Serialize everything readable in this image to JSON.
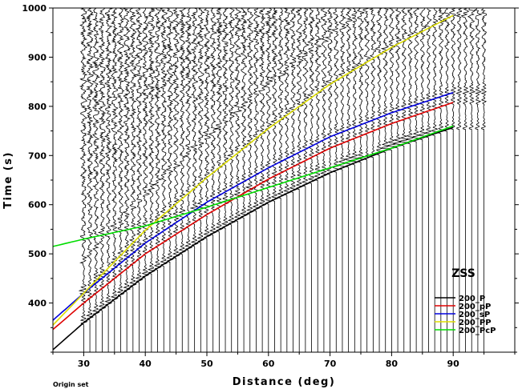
{
  "chart_data": {
    "type": "line",
    "title": "",
    "xlabel": "Distance (deg)",
    "ylabel": "Time (s)",
    "xlim": [
      25,
      100
    ],
    "ylim": [
      300,
      1000
    ],
    "x_ticks": [
      30,
      40,
      50,
      60,
      70,
      80,
      90
    ],
    "y_ticks": [
      400,
      500,
      600,
      700,
      800,
      900,
      1000
    ],
    "grid": false,
    "legend_title": "ZSS",
    "legend_position": "lower-right",
    "footnote": "Origin set",
    "traces": {
      "distances_deg": [
        30,
        31,
        32,
        33,
        34,
        35,
        36,
        37,
        38,
        39,
        40,
        41,
        42,
        43,
        44,
        45,
        46,
        47,
        48,
        49,
        50,
        51,
        52,
        53,
        54,
        55,
        56,
        57,
        58,
        59,
        60,
        61,
        62,
        63,
        64,
        65,
        66,
        67,
        68,
        69,
        70,
        71,
        72,
        73,
        74,
        75,
        76,
        77,
        78,
        79,
        80,
        81,
        82,
        83,
        84,
        85,
        86,
        87,
        88,
        89,
        90,
        91,
        92,
        93,
        94,
        95
      ],
      "end_time_s": 1000,
      "color": "#000000"
    },
    "series": [
      {
        "name": "200_P",
        "color": "#000000",
        "x": [
          25,
          30,
          40,
          50,
          60,
          70,
          80,
          90
        ],
        "y": [
          305,
          360,
          455,
          535,
          605,
          665,
          715,
          757
        ]
      },
      {
        "name": "200_pP",
        "color": "#dd0000",
        "x": [
          25,
          30,
          40,
          50,
          60,
          70,
          80,
          90
        ],
        "y": [
          346,
          400,
          500,
          580,
          652,
          715,
          765,
          808
        ]
      },
      {
        "name": "200_sP",
        "color": "#0000dd",
        "x": [
          25,
          30,
          40,
          50,
          60,
          70,
          80,
          90
        ],
        "y": [
          365,
          420,
          522,
          605,
          675,
          738,
          787,
          828
        ]
      },
      {
        "name": "200_PP",
        "color": "#dddd00",
        "x": [
          25,
          30,
          40,
          50,
          60,
          70,
          80,
          90
        ],
        "y": [
          355,
          420,
          548,
          655,
          755,
          845,
          920,
          985
        ]
      },
      {
        "name": "200_PcP",
        "color": "#00dd00",
        "x": [
          25,
          30,
          40,
          50,
          60,
          70,
          80,
          90
        ],
        "y": [
          515,
          530,
          557,
          595,
          635,
          675,
          715,
          760
        ]
      }
    ]
  }
}
